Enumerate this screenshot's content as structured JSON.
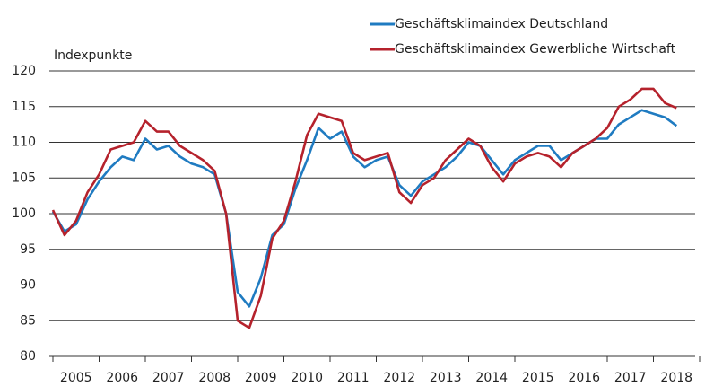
{
  "chart_data": {
    "type": "line",
    "y_label": "Indexpunkte",
    "x": [
      2005,
      2005.25,
      2005.5,
      2005.75,
      2006,
      2006.25,
      2006.5,
      2006.75,
      2007,
      2007.25,
      2007.5,
      2007.75,
      2008,
      2008.25,
      2008.5,
      2008.75,
      2009,
      2009.25,
      2009.5,
      2009.75,
      2010,
      2010.25,
      2010.5,
      2010.75,
      2011,
      2011.25,
      2011.5,
      2011.75,
      2012,
      2012.25,
      2012.5,
      2012.75,
      2013,
      2013.25,
      2013.5,
      2013.75,
      2014,
      2014.25,
      2014.5,
      2014.75,
      2015,
      2015.25,
      2015.5,
      2015.75,
      2016,
      2016.25,
      2016.5,
      2016.75,
      2017,
      2017.25,
      2017.5,
      2017.75,
      2018,
      2018.25,
      2018.5
    ],
    "series": [
      {
        "name": "Geschäftsklimaindex Deutschland",
        "color": "#1f7bc1",
        "values": [
          100.3,
          97.5,
          98.5,
          102,
          104.5,
          106.5,
          108,
          107.5,
          110.5,
          109,
          109.5,
          108,
          107,
          106.5,
          105.5,
          100,
          89,
          87,
          91,
          97,
          98.5,
          103.5,
          107.5,
          112,
          110.5,
          111.5,
          108,
          106.5,
          107.5,
          108,
          104,
          102.5,
          104.5,
          105.5,
          106.5,
          108,
          110,
          109.5,
          107.5,
          105.5,
          107.5,
          108.5,
          109.5,
          109.5,
          107.5,
          108.5,
          109.5,
          110.5,
          110.5,
          112.5,
          113.5,
          114.5,
          114,
          113.5,
          112.3
        ]
      },
      {
        "name": "Geschäftsklimaindex Gewerbliche Wirtschaft",
        "color": "#b5222c",
        "values": [
          100.5,
          97,
          99,
          103,
          105.5,
          109,
          109.5,
          110,
          113,
          111.5,
          111.5,
          109.5,
          108.5,
          107.5,
          106,
          100,
          85,
          84,
          88.5,
          96.5,
          99,
          104.5,
          111,
          114,
          113.5,
          113,
          108.5,
          107.5,
          108,
          108.5,
          103,
          101.5,
          104,
          105,
          107.5,
          109,
          110.5,
          109.5,
          106.5,
          104.5,
          107,
          108,
          108.5,
          108,
          106.5,
          108.5,
          109.5,
          110.5,
          112,
          115,
          116,
          117.5,
          117.5,
          115.5,
          114.8
        ]
      }
    ],
    "xlim": [
      2005,
      2019
    ],
    "xticks": [
      {
        "value": 2005.5,
        "label": "2005"
      },
      {
        "value": 2006.5,
        "label": "2006"
      },
      {
        "value": 2007.5,
        "label": "2007"
      },
      {
        "value": 2008.5,
        "label": "2008"
      },
      {
        "value": 2009.5,
        "label": "2009"
      },
      {
        "value": 2010.5,
        "label": "2010"
      },
      {
        "value": 2011.5,
        "label": "2011"
      },
      {
        "value": 2012.5,
        "label": "2012"
      },
      {
        "value": 2013.5,
        "label": "2013"
      },
      {
        "value": 2014.5,
        "label": "2014"
      },
      {
        "value": 2015.5,
        "label": "2015"
      },
      {
        "value": 2016.5,
        "label": "2016"
      },
      {
        "value": 2017.5,
        "label": "2017"
      },
      {
        "value": 2018.5,
        "label": "2018"
      }
    ],
    "ylim": [
      80,
      120
    ],
    "yticks": [
      80,
      85,
      90,
      95,
      100,
      105,
      110,
      115,
      120
    ],
    "grid": true
  }
}
